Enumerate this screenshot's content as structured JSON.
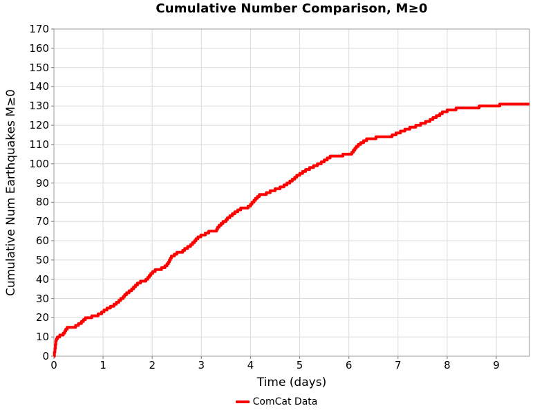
{
  "title": "Cumulative Number Comparison, M≥0",
  "axes": {
    "x_label": "Time (days)",
    "y_label": "Cumulative Num Earthquakes M≥0"
  },
  "legend": {
    "label": "ComCat Data",
    "position": "bottom-center"
  },
  "colors": {
    "line": "#ff0000",
    "grid": "#dcdcdc",
    "spine": "#9a9a9a",
    "tick": "#8a8a8a",
    "text": "#000000",
    "background": "#ffffff"
  },
  "chart_data": {
    "type": "line",
    "style": "step-post",
    "title": "Cumulative Number Comparison, M≥0",
    "xlabel": "Time (days)",
    "ylabel": "Cumulative Num Earthquakes M≥0",
    "xlim": [
      0,
      9.675
    ],
    "ylim": [
      0,
      170
    ],
    "x_ticks": [
      0,
      1,
      2,
      3,
      4,
      5,
      6,
      7,
      8,
      9
    ],
    "y_ticks": [
      0,
      10,
      20,
      30,
      40,
      50,
      60,
      70,
      80,
      90,
      100,
      110,
      120,
      130,
      140,
      150,
      160,
      170
    ],
    "grid": true,
    "legend_position": "bottom",
    "series": [
      {
        "name": "ComCat Data",
        "color": "#ff0000",
        "points": [
          [
            0.0,
            0
          ],
          [
            0.01,
            2
          ],
          [
            0.02,
            4
          ],
          [
            0.03,
            6
          ],
          [
            0.04,
            8
          ],
          [
            0.05,
            9
          ],
          [
            0.07,
            10
          ],
          [
            0.12,
            11
          ],
          [
            0.19,
            12
          ],
          [
            0.22,
            13
          ],
          [
            0.24,
            14
          ],
          [
            0.27,
            15
          ],
          [
            0.44,
            16
          ],
          [
            0.5,
            17
          ],
          [
            0.56,
            18
          ],
          [
            0.6,
            19
          ],
          [
            0.64,
            20
          ],
          [
            0.77,
            21
          ],
          [
            0.9,
            22
          ],
          [
            0.97,
            23
          ],
          [
            1.02,
            24
          ],
          [
            1.08,
            25
          ],
          [
            1.15,
            26
          ],
          [
            1.22,
            27
          ],
          [
            1.27,
            28
          ],
          [
            1.32,
            29
          ],
          [
            1.36,
            30
          ],
          [
            1.41,
            31
          ],
          [
            1.44,
            32
          ],
          [
            1.48,
            33
          ],
          [
            1.53,
            34
          ],
          [
            1.58,
            35
          ],
          [
            1.62,
            36
          ],
          [
            1.66,
            37
          ],
          [
            1.7,
            38
          ],
          [
            1.76,
            39
          ],
          [
            1.87,
            40
          ],
          [
            1.91,
            41
          ],
          [
            1.94,
            42
          ],
          [
            1.97,
            43
          ],
          [
            2.01,
            44
          ],
          [
            2.06,
            45
          ],
          [
            2.19,
            46
          ],
          [
            2.26,
            47
          ],
          [
            2.3,
            48
          ],
          [
            2.33,
            49
          ],
          [
            2.35,
            50
          ],
          [
            2.37,
            51
          ],
          [
            2.39,
            52
          ],
          [
            2.45,
            53
          ],
          [
            2.5,
            54
          ],
          [
            2.62,
            55
          ],
          [
            2.66,
            56
          ],
          [
            2.72,
            57
          ],
          [
            2.78,
            58
          ],
          [
            2.82,
            59
          ],
          [
            2.86,
            60
          ],
          [
            2.89,
            61
          ],
          [
            2.93,
            62
          ],
          [
            2.99,
            63
          ],
          [
            3.08,
            64
          ],
          [
            3.15,
            65
          ],
          [
            3.31,
            66
          ],
          [
            3.33,
            67
          ],
          [
            3.36,
            68
          ],
          [
            3.4,
            69
          ],
          [
            3.44,
            70
          ],
          [
            3.5,
            71
          ],
          [
            3.53,
            72
          ],
          [
            3.58,
            73
          ],
          [
            3.63,
            74
          ],
          [
            3.68,
            75
          ],
          [
            3.74,
            76
          ],
          [
            3.8,
            77
          ],
          [
            3.95,
            78
          ],
          [
            4.0,
            79
          ],
          [
            4.03,
            80
          ],
          [
            4.07,
            81
          ],
          [
            4.1,
            82
          ],
          [
            4.14,
            83
          ],
          [
            4.18,
            84
          ],
          [
            4.32,
            85
          ],
          [
            4.4,
            86
          ],
          [
            4.5,
            87
          ],
          [
            4.6,
            88
          ],
          [
            4.68,
            89
          ],
          [
            4.74,
            90
          ],
          [
            4.8,
            91
          ],
          [
            4.85,
            92
          ],
          [
            4.9,
            93
          ],
          [
            4.94,
            94
          ],
          [
            5.0,
            95
          ],
          [
            5.06,
            96
          ],
          [
            5.12,
            97
          ],
          [
            5.2,
            98
          ],
          [
            5.28,
            99
          ],
          [
            5.36,
            100
          ],
          [
            5.44,
            101
          ],
          [
            5.5,
            102
          ],
          [
            5.56,
            103
          ],
          [
            5.62,
            104
          ],
          [
            5.88,
            105
          ],
          [
            6.06,
            106
          ],
          [
            6.09,
            107
          ],
          [
            6.12,
            108
          ],
          [
            6.15,
            109
          ],
          [
            6.19,
            110
          ],
          [
            6.24,
            111
          ],
          [
            6.3,
            112
          ],
          [
            6.36,
            113
          ],
          [
            6.55,
            114
          ],
          [
            6.88,
            115
          ],
          [
            6.96,
            116
          ],
          [
            7.05,
            117
          ],
          [
            7.14,
            118
          ],
          [
            7.24,
            119
          ],
          [
            7.36,
            120
          ],
          [
            7.46,
            121
          ],
          [
            7.56,
            122
          ],
          [
            7.65,
            123
          ],
          [
            7.71,
            124
          ],
          [
            7.78,
            125
          ],
          [
            7.85,
            126
          ],
          [
            7.9,
            127
          ],
          [
            8.0,
            128
          ],
          [
            8.18,
            129
          ],
          [
            8.65,
            130
          ],
          [
            9.07,
            131
          ]
        ]
      }
    ]
  }
}
